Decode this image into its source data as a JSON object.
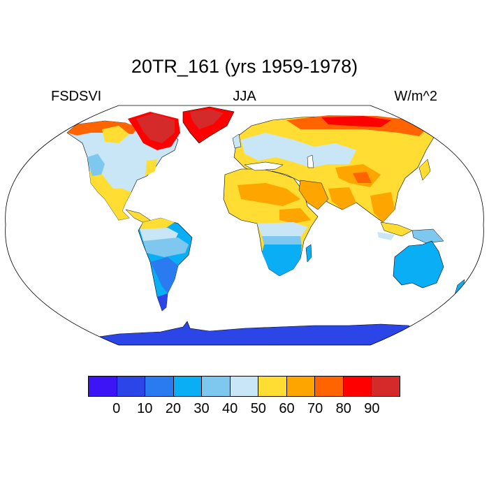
{
  "title": "20TR_161 (yrs 1959-1978)",
  "left_label": "FSDSVI",
  "center_label": "JJA",
  "right_label": "W/m^2",
  "colorbar": {
    "colors": [
      "#3c14f5",
      "#2b45e6",
      "#2a7bf0",
      "#0aaef5",
      "#7ec8f0",
      "#c9e6f7",
      "#ffdd33",
      "#ffa500",
      "#ff6400",
      "#ff0000",
      "#d42a2a"
    ],
    "tick_labels": [
      "0",
      "10",
      "20",
      "30",
      "40",
      "50",
      "60",
      "70",
      "80",
      "90"
    ]
  },
  "map": {
    "projection": "Robinson",
    "regions": [
      {
        "name": "north-america",
        "color": "#c9e6f7"
      },
      {
        "name": "south-america",
        "color": "#2a7bf0"
      },
      {
        "name": "europe-asia",
        "color": "#ffdd33"
      },
      {
        "name": "africa",
        "color": "#ffdd33"
      },
      {
        "name": "australia",
        "color": "#0aaef5"
      },
      {
        "name": "antarctica",
        "color": "#2b45e6"
      },
      {
        "name": "greenland",
        "color": "#ff0000"
      }
    ]
  }
}
